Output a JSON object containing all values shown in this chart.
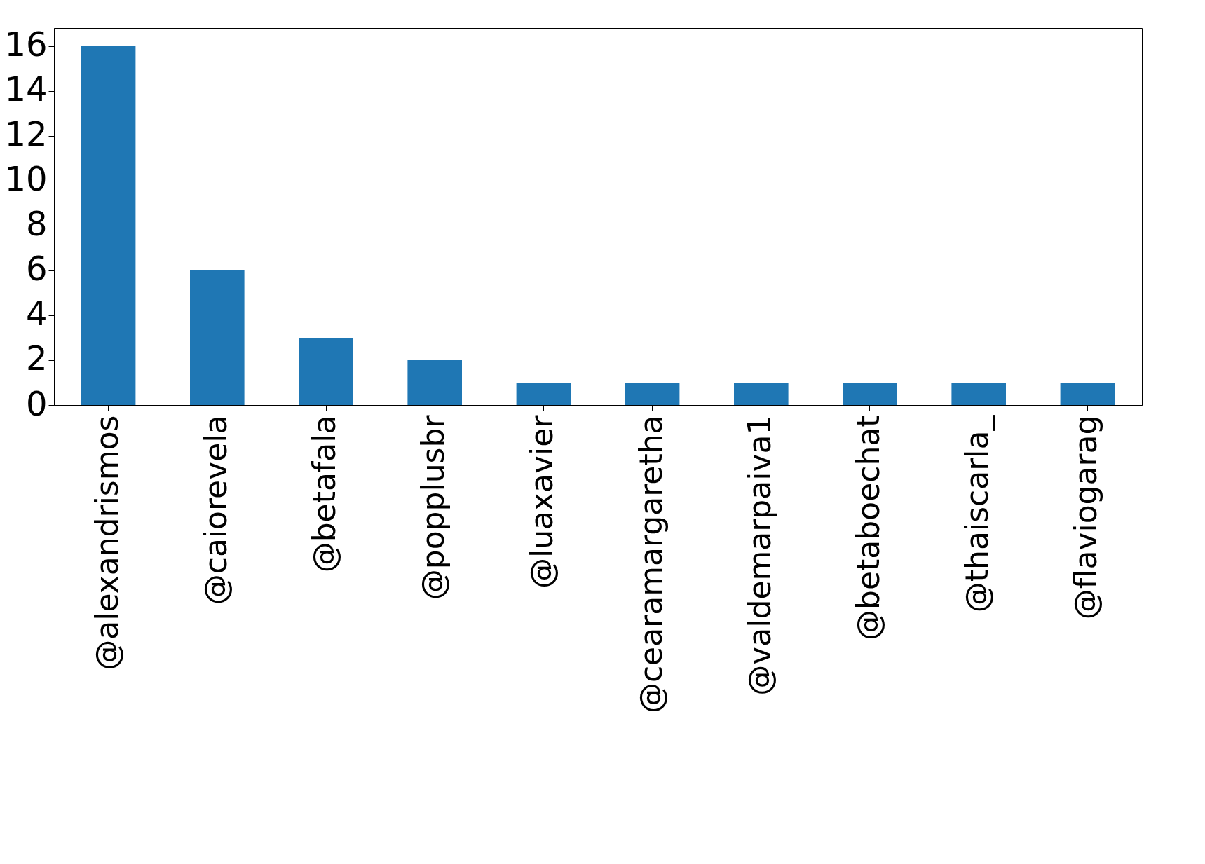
{
  "chart_data": {
    "type": "bar",
    "categories": [
      "@alexandrismos",
      "@caiorevela",
      "@betafala",
      "@popplusbr",
      "@luaxavier",
      "@cearamargaretha",
      "@valdemarpaiva1",
      "@betaboechat",
      "@thaiscarla_",
      "@flaviogarag"
    ],
    "values": [
      16,
      6,
      3,
      2,
      1,
      1,
      1,
      1,
      1,
      1
    ],
    "color": "#1f77b4",
    "ylim": [
      0,
      16.8
    ],
    "yticks": [
      0,
      2,
      4,
      6,
      8,
      10,
      12,
      14,
      16
    ],
    "grid": false
  }
}
